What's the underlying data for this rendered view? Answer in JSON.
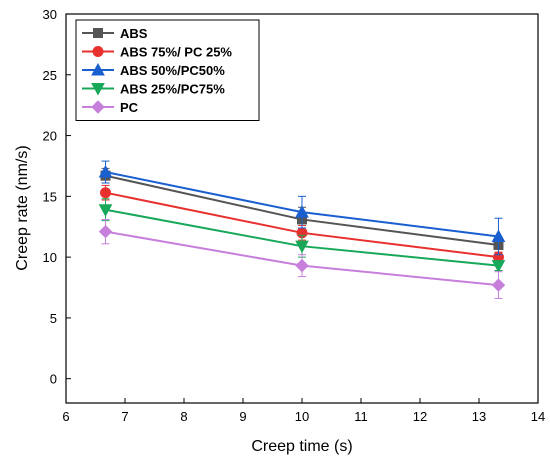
{
  "chart_data": {
    "type": "line",
    "xlabel": "Creep time (s)",
    "ylabel": "Creep rate (nm/s)",
    "xlim": [
      6,
      14
    ],
    "ylim": [
      -2,
      30
    ],
    "xticks": [
      "6",
      "7",
      "8",
      "9",
      "10",
      "11",
      "12",
      "13",
      "14"
    ],
    "yticks": [
      "0",
      "5",
      "10",
      "15",
      "20",
      "25",
      "30"
    ],
    "x": [
      6.67,
      10.0,
      13.33
    ],
    "legend_position": "top-left",
    "grid": false,
    "series": [
      {
        "name": "ABS",
        "values": [
          16.7,
          13.1,
          11.0
        ],
        "error": [
          0.6,
          1.0,
          0.6
        ],
        "color": "#555555",
        "marker": "square"
      },
      {
        "name": "ABS 75%/ PC 25%",
        "values": [
          15.3,
          12.0,
          10.0
        ],
        "error": [
          0.6,
          0.6,
          0.4
        ],
        "color": "#e8312f",
        "marker": "circle"
      },
      {
        "name": "ABS 50%/PC50%",
        "values": [
          17.0,
          13.7,
          11.7
        ],
        "error": [
          0.9,
          1.3,
          1.5
        ],
        "color": "#1a5fcf",
        "marker": "triangle-up"
      },
      {
        "name": "ABS 25%/PC75%",
        "values": [
          13.9,
          10.9,
          9.3
        ],
        "error": [
          0.9,
          0.9,
          0.4
        ],
        "color": "#18a85a",
        "marker": "triangle-down"
      },
      {
        "name": "PC",
        "values": [
          12.1,
          9.3,
          7.7
        ],
        "error": [
          1.0,
          0.9,
          1.1
        ],
        "color": "#c77fdc",
        "marker": "diamond"
      }
    ]
  }
}
